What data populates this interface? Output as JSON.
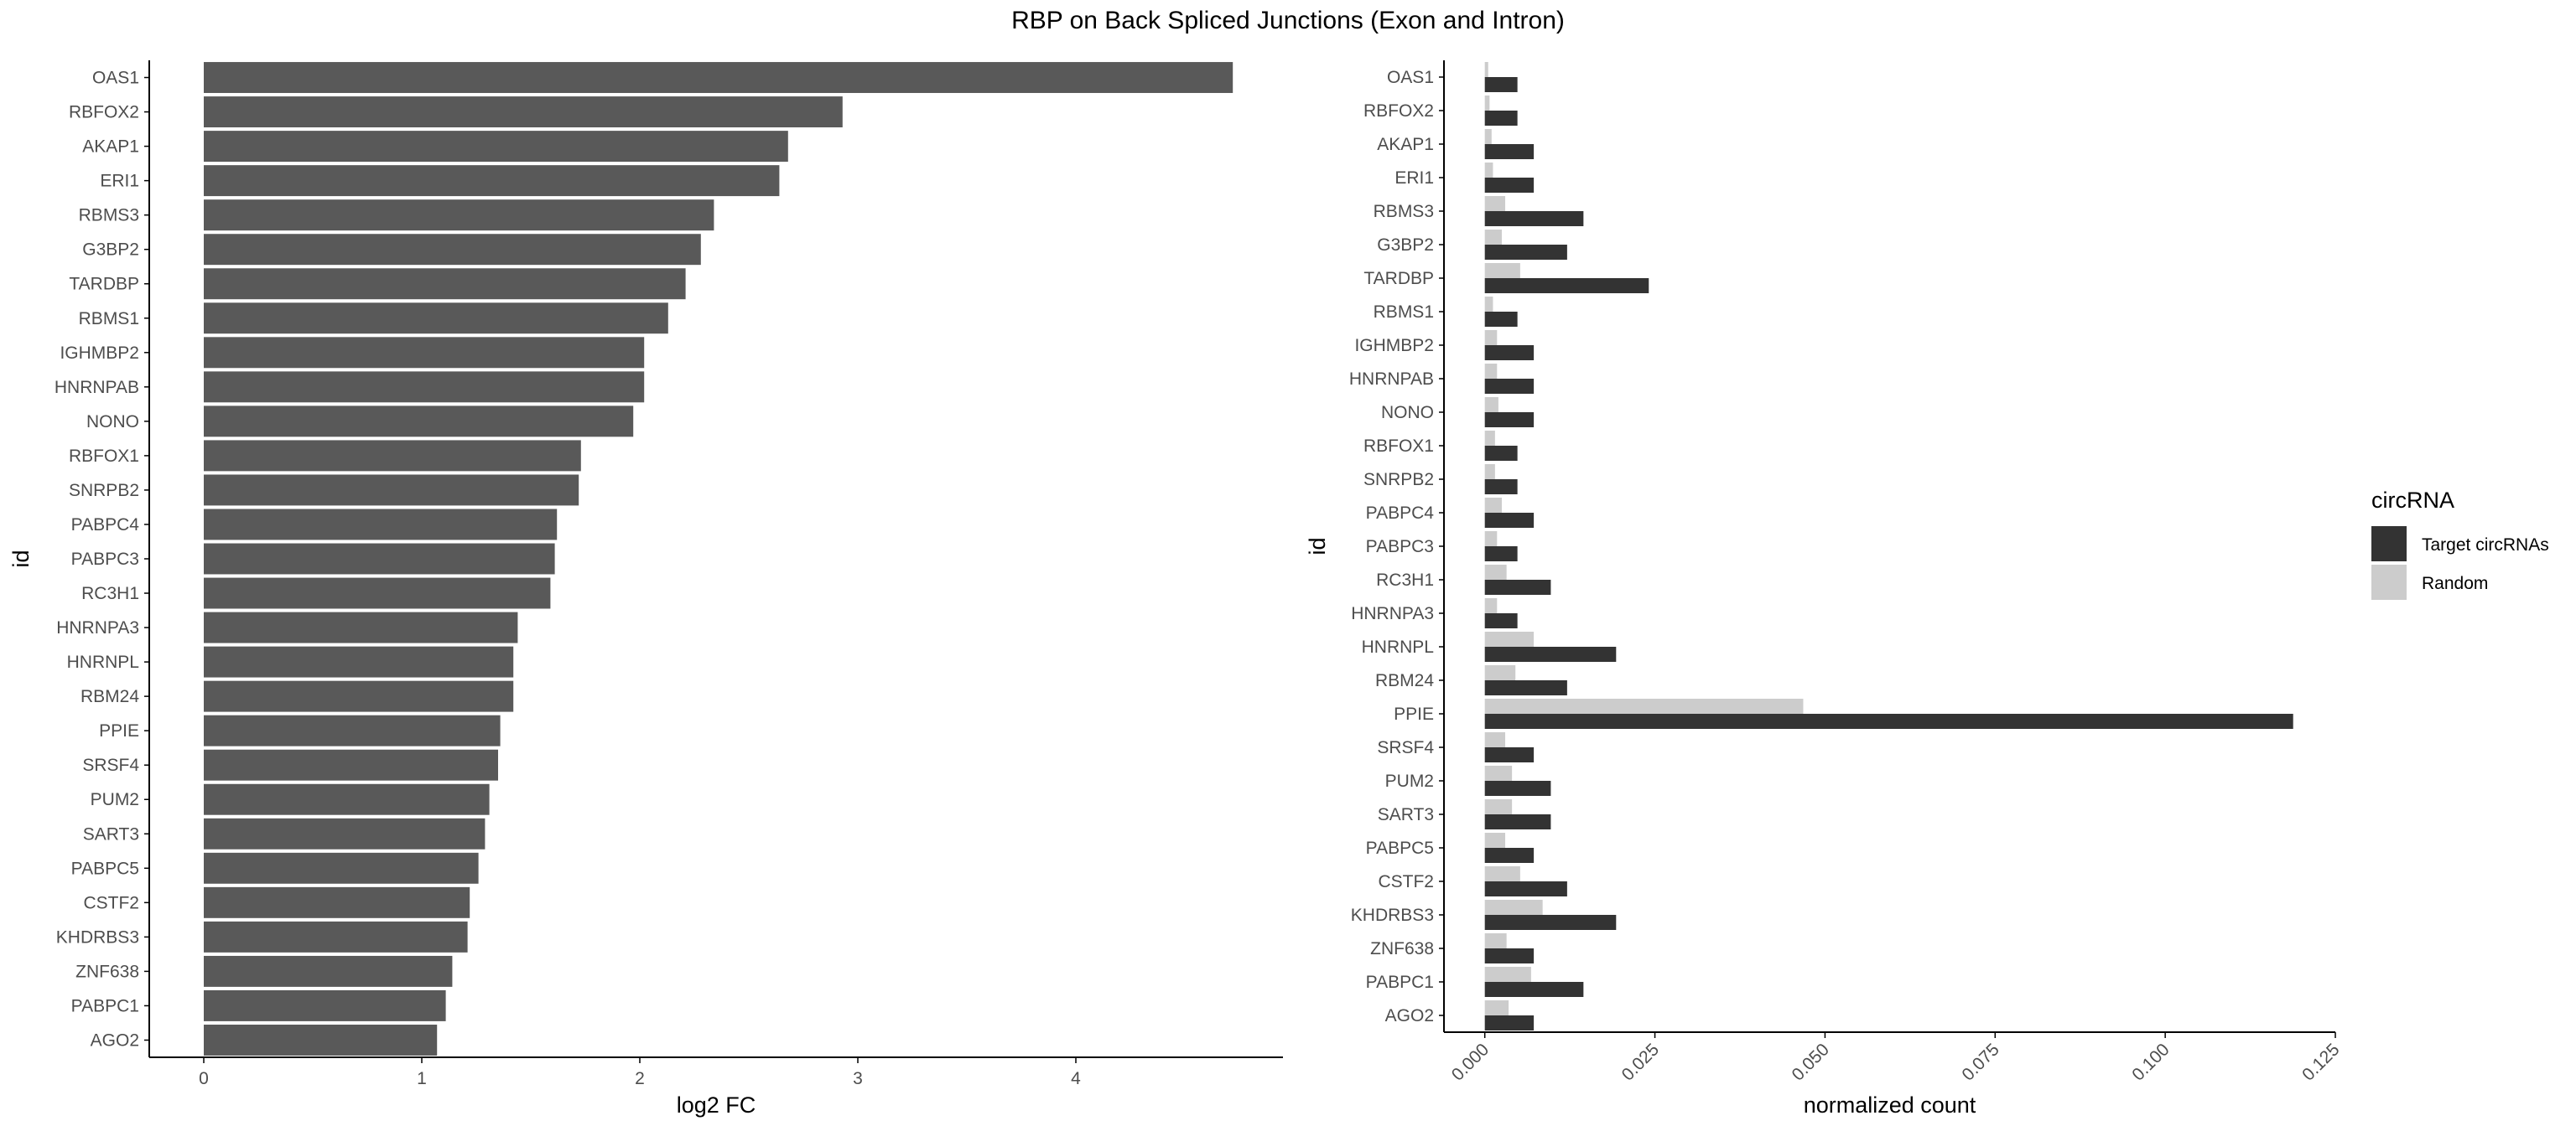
{
  "title": "RBP on Back Spliced Junctions (Exon and Intron)",
  "colors": {
    "left_bar": "#595959",
    "target": "#333333",
    "random": "#cccccc",
    "axis": "#000000",
    "tick_label": "#4d4d4d"
  },
  "chart_data": [
    {
      "type": "bar",
      "orientation": "horizontal",
      "xlabel": "log2 FC",
      "ylabel": "id",
      "xlim": [
        -0.25,
        4.95
      ],
      "xticks": [
        0,
        1,
        2,
        3,
        4
      ],
      "categories": [
        "OAS1",
        "RBFOX2",
        "AKAP1",
        "ERI1",
        "RBMS3",
        "G3BP2",
        "TARDBP",
        "RBMS1",
        "IGHMBP2",
        "HNRNPAB",
        "NONO",
        "RBFOX1",
        "SNRPB2",
        "PABPC4",
        "PABPC3",
        "RC3H1",
        "HNRNPA3",
        "HNRNPL",
        "RBM24",
        "PPIE",
        "SRSF4",
        "PUM2",
        "SART3",
        "PABPC5",
        "CSTF2",
        "KHDRBS3",
        "ZNF638",
        "PABPC1",
        "AGO2"
      ],
      "values": [
        4.72,
        2.93,
        2.68,
        2.64,
        2.34,
        2.28,
        2.21,
        2.13,
        2.02,
        2.02,
        1.97,
        1.73,
        1.72,
        1.62,
        1.61,
        1.59,
        1.44,
        1.42,
        1.42,
        1.36,
        1.35,
        1.31,
        1.29,
        1.26,
        1.22,
        1.21,
        1.14,
        1.11,
        1.07
      ],
      "grid": false
    },
    {
      "type": "bar",
      "orientation": "horizontal",
      "grouped": true,
      "xlabel": "normalized count",
      "ylabel": "id",
      "xlim": [
        -0.006,
        0.125
      ],
      "xticks": [
        "0.000",
        "0.025",
        "0.050",
        "0.075",
        "0.100",
        "0.125"
      ],
      "categories": [
        "OAS1",
        "RBFOX2",
        "AKAP1",
        "ERI1",
        "RBMS3",
        "G3BP2",
        "TARDBP",
        "RBMS1",
        "IGHMBP2",
        "HNRNPAB",
        "NONO",
        "RBFOX1",
        "SNRPB2",
        "PABPC4",
        "PABPC3",
        "RC3H1",
        "HNRNPA3",
        "HNRNPL",
        "RBM24",
        "PPIE",
        "SRSF4",
        "PUM2",
        "SART3",
        "PABPC5",
        "CSTF2",
        "KHDRBS3",
        "ZNF638",
        "PABPC1",
        "AGO2"
      ],
      "series": [
        {
          "name": "Target circRNAs",
          "values": [
            0.0048,
            0.0048,
            0.0072,
            0.0072,
            0.0145,
            0.0121,
            0.0241,
            0.0048,
            0.0072,
            0.0072,
            0.0072,
            0.0048,
            0.0048,
            0.0072,
            0.0048,
            0.0097,
            0.0048,
            0.0193,
            0.0121,
            0.1188,
            0.0072,
            0.0097,
            0.0097,
            0.0072,
            0.0121,
            0.0193,
            0.0072,
            0.0145,
            0.0072
          ]
        },
        {
          "name": "Random",
          "values": [
            0.0005,
            0.0007,
            0.001,
            0.0012,
            0.003,
            0.0025,
            0.0052,
            0.0012,
            0.0018,
            0.0018,
            0.002,
            0.0015,
            0.0015,
            0.0025,
            0.0018,
            0.0032,
            0.0018,
            0.0072,
            0.0045,
            0.0468,
            0.003,
            0.004,
            0.004,
            0.003,
            0.0052,
            0.0085,
            0.0032,
            0.0068,
            0.0035
          ]
        }
      ],
      "legend": {
        "title": "circRNA",
        "position": "right",
        "entries": [
          "Target circRNAs",
          "Random"
        ]
      },
      "grid": false
    }
  ]
}
